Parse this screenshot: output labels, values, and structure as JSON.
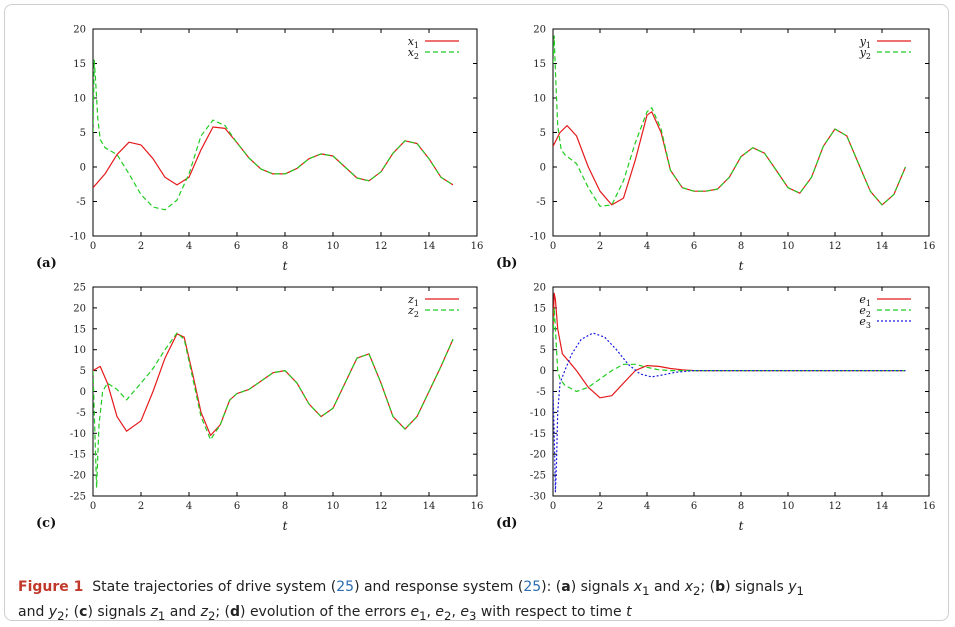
{
  "caption": {
    "label": "Figure 1",
    "p1": "State trajectories of drive system (",
    "ref1": "25",
    "p2": ") and response system (",
    "ref2": "25",
    "p3": "): (",
    "a": "a",
    "p4": ") signals ",
    "x1": "x",
    "x1s": "1",
    "and1": " and ",
    "x2": "x",
    "x2s": "2",
    "p5": "; (",
    "b": "b",
    "p6": ") signals ",
    "y1": "y",
    "y1s": "1",
    "and2": " and ",
    "y2": "y",
    "y2s": "2",
    "p7": "; (",
    "c": "c",
    "p8": ") signals ",
    "z1": "z",
    "z1s": "1",
    "and3": " and ",
    "z2": "z",
    "z2s": "2",
    "p9": "; (",
    "d": "d",
    "p10": ") evolution of the errors ",
    "e1": "e",
    "e1s": "1",
    "c1": ", ",
    "e2": "e",
    "e2s": "2",
    "c2": ", ",
    "e3": "e",
    "e3s": "3",
    "p11": " with respect to time ",
    "t": "t"
  },
  "chart_data": [
    {
      "type": "line",
      "panel_label": "(a)",
      "xlabel": "t",
      "xlim": [
        0,
        16
      ],
      "ylim": [
        -10,
        20
      ],
      "xticks": [
        0,
        2,
        4,
        6,
        8,
        10,
        12,
        14,
        16
      ],
      "yticks": [
        -10,
        -5,
        0,
        5,
        10,
        15,
        20
      ],
      "legend_position": "top-right",
      "series": [
        {
          "name": "x",
          "sub": "1",
          "color": "#e41a1c",
          "dash": "solid",
          "x": [
            0,
            0.5,
            1,
            1.5,
            2,
            2.5,
            3,
            3.5,
            4,
            4.5,
            5,
            5.5,
            6,
            6.5,
            7,
            7.5,
            8,
            8.5,
            9,
            9.5,
            10,
            10.5,
            11,
            11.5,
            12,
            12.5,
            13,
            13.5,
            14,
            14.5,
            15
          ],
          "y": [
            -3.0,
            -1.0,
            1.8,
            3.6,
            3.2,
            1.2,
            -1.5,
            -2.6,
            -1.5,
            2.5,
            5.8,
            5.6,
            3.5,
            1.3,
            -0.3,
            -1.0,
            -1.0,
            -0.2,
            1.2,
            1.9,
            1.6,
            0.0,
            -1.6,
            -2.0,
            -0.7,
            2.0,
            3.8,
            3.4,
            1.2,
            -1.5,
            -2.6
          ]
        },
        {
          "name": "x",
          "sub": "2",
          "color": "#22cc22",
          "dash": "dashed",
          "x": [
            0,
            0.05,
            0.1,
            0.2,
            0.3,
            0.5,
            1,
            1.5,
            2,
            2.5,
            3,
            3.5,
            4,
            4.5,
            5,
            5.5,
            6,
            6.5,
            7,
            7.5,
            8,
            8.5,
            9,
            9.5,
            10,
            10.5,
            11,
            11.5,
            12,
            12.5,
            13,
            13.5,
            14,
            14.5,
            15
          ],
          "y": [
            5.0,
            15.5,
            13.0,
            7.0,
            4.0,
            2.8,
            1.8,
            -1.0,
            -4.0,
            -5.8,
            -6.2,
            -4.8,
            -1.0,
            4.5,
            6.8,
            6.0,
            3.5,
            1.3,
            -0.3,
            -1.0,
            -1.0,
            -0.2,
            1.2,
            1.9,
            1.6,
            0.0,
            -1.6,
            -2.0,
            -0.7,
            2.0,
            3.8,
            3.4,
            1.2,
            -1.5,
            -2.6
          ]
        }
      ]
    },
    {
      "type": "line",
      "panel_label": "(b)",
      "xlabel": "t",
      "xlim": [
        0,
        16
      ],
      "ylim": [
        -10,
        20
      ],
      "xticks": [
        0,
        2,
        4,
        6,
        8,
        10,
        12,
        14,
        16
      ],
      "yticks": [
        -10,
        -5,
        0,
        5,
        10,
        15,
        20
      ],
      "legend_position": "top-right",
      "series": [
        {
          "name": "y",
          "sub": "1",
          "color": "#e41a1c",
          "dash": "solid",
          "x": [
            0,
            0.3,
            0.6,
            1,
            1.5,
            2,
            2.5,
            3,
            3.5,
            4,
            4.2,
            4.6,
            5,
            5.5,
            6,
            6.5,
            7,
            7.5,
            8,
            8.5,
            9,
            9.5,
            10,
            10.5,
            11,
            11.5,
            12,
            12.5,
            13,
            13.5,
            14,
            14.5,
            15
          ],
          "y": [
            3.0,
            5.0,
            6.0,
            4.5,
            0.0,
            -3.5,
            -5.5,
            -4.5,
            1.0,
            7.5,
            8.0,
            5.0,
            -0.5,
            -3.0,
            -3.5,
            -3.5,
            -3.2,
            -1.5,
            1.5,
            2.8,
            2.0,
            -0.5,
            -3.0,
            -3.8,
            -1.5,
            3.0,
            5.5,
            4.5,
            0.5,
            -3.5,
            -5.5,
            -4.0,
            0.0
          ]
        },
        {
          "name": "y",
          "sub": "2",
          "color": "#22cc22",
          "dash": "dashed",
          "x": [
            0,
            0.05,
            0.1,
            0.2,
            0.35,
            0.5,
            1,
            1.5,
            2,
            2.5,
            3,
            3.5,
            4,
            4.2,
            4.6,
            5,
            5.5,
            6,
            6.5,
            7,
            7.5,
            8,
            8.5,
            9,
            9.5,
            10,
            10.5,
            11,
            11.5,
            12,
            12.5,
            13,
            13.5,
            14,
            14.5,
            15
          ],
          "y": [
            15.0,
            19.0,
            14.0,
            6.0,
            2.5,
            1.8,
            0.5,
            -3.0,
            -5.7,
            -5.5,
            -2.0,
            3.5,
            8.0,
            8.6,
            5.5,
            -0.5,
            -3.0,
            -3.5,
            -3.5,
            -3.2,
            -1.5,
            1.5,
            2.8,
            2.0,
            -0.5,
            -3.0,
            -3.8,
            -1.5,
            3.0,
            5.5,
            4.5,
            0.5,
            -3.5,
            -5.5,
            -4.0,
            0.0
          ]
        }
      ]
    },
    {
      "type": "line",
      "panel_label": "(c)",
      "xlabel": "t",
      "xlim": [
        0,
        16
      ],
      "ylim": [
        -25,
        25
      ],
      "xticks": [
        0,
        2,
        4,
        6,
        8,
        10,
        12,
        14,
        16
      ],
      "yticks": [
        -25,
        -20,
        -15,
        -10,
        -5,
        0,
        5,
        10,
        15,
        20,
        25
      ],
      "legend_position": "top-right",
      "series": [
        {
          "name": "z",
          "sub": "1",
          "color": "#e41a1c",
          "dash": "solid",
          "x": [
            0,
            0.3,
            0.6,
            1,
            1.4,
            2,
            2.5,
            3,
            3.5,
            3.8,
            4.2,
            4.5,
            4.9,
            5.3,
            5.7,
            6,
            6.5,
            7,
            7.5,
            8,
            8.5,
            9,
            9.5,
            10,
            10.5,
            11,
            11.5,
            12,
            12.5,
            13,
            13.5,
            14,
            14.5,
            15
          ],
          "y": [
            5.0,
            6.0,
            2.0,
            -6.0,
            -9.5,
            -7.0,
            0.0,
            8.0,
            13.8,
            13.0,
            3.0,
            -5.0,
            -10.5,
            -8.0,
            -2.0,
            -0.5,
            0.5,
            2.5,
            4.5,
            5.0,
            2.0,
            -3.0,
            -6.0,
            -4.0,
            2.0,
            8.0,
            9.0,
            2.0,
            -6.0,
            -9.0,
            -6.0,
            0.0,
            6.0,
            12.5
          ]
        },
        {
          "name": "z",
          "sub": "2",
          "color": "#22cc22",
          "dash": "dashed",
          "x": [
            0,
            0.08,
            0.15,
            0.25,
            0.4,
            0.6,
            1,
            1.4,
            2,
            2.5,
            3,
            3.5,
            3.8,
            4.2,
            4.5,
            4.9,
            5.3,
            5.7,
            6,
            6.5,
            7,
            7.5,
            8,
            8.5,
            9,
            9.5,
            10,
            10.5,
            11,
            11.5,
            12,
            12.5,
            13,
            13.5,
            14,
            14.5,
            15
          ],
          "y": [
            5.0,
            -10.0,
            -23.0,
            -8.0,
            0.0,
            2.0,
            0.5,
            -2.0,
            2.0,
            5.5,
            10.0,
            14.0,
            12.5,
            2.0,
            -6.0,
            -11.5,
            -8.0,
            -2.0,
            -0.5,
            0.5,
            2.5,
            4.5,
            5.0,
            2.0,
            -3.0,
            -6.0,
            -4.0,
            2.0,
            8.0,
            9.0,
            2.0,
            -6.0,
            -9.0,
            -6.0,
            0.0,
            6.0,
            12.5
          ]
        }
      ]
    },
    {
      "type": "line",
      "panel_label": "(d)",
      "xlabel": "t",
      "xlim": [
        0,
        16
      ],
      "ylim": [
        -30,
        20
      ],
      "xticks": [
        0,
        2,
        4,
        6,
        8,
        10,
        12,
        14,
        16
      ],
      "yticks": [
        -30,
        -25,
        -20,
        -15,
        -10,
        -5,
        0,
        5,
        10,
        15,
        20
      ],
      "legend_position": "top-right",
      "series": [
        {
          "name": "e",
          "sub": "1",
          "color": "#e41a1c",
          "dash": "solid",
          "x": [
            0,
            0.05,
            0.1,
            0.2,
            0.4,
            0.7,
            1,
            1.5,
            2,
            2.5,
            3,
            3.5,
            4,
            4.5,
            5,
            5.5,
            6,
            7,
            8,
            10,
            12,
            14,
            15
          ],
          "y": [
            10.0,
            18.5,
            17.0,
            10.0,
            4.0,
            2.0,
            0.0,
            -4.0,
            -6.5,
            -6.0,
            -3.0,
            0.0,
            1.2,
            1.0,
            0.5,
            0.2,
            0.0,
            0.0,
            0.0,
            0.0,
            0.0,
            0.0,
            0.0
          ]
        },
        {
          "name": "e",
          "sub": "2",
          "color": "#22cc22",
          "dash": "dashed",
          "x": [
            0,
            0.05,
            0.1,
            0.2,
            0.3,
            0.5,
            1,
            1.5,
            2,
            2.5,
            3,
            3.5,
            4,
            4.5,
            5,
            6,
            7,
            8,
            10,
            12,
            14,
            15
          ],
          "y": [
            8.0,
            15.0,
            10.0,
            0.0,
            -2.0,
            -3.5,
            -5.0,
            -4.0,
            -2.0,
            0.0,
            1.5,
            1.5,
            0.8,
            0.2,
            0.0,
            0.0,
            0.0,
            0.0,
            0.0,
            0.0,
            0.0,
            0.0
          ]
        },
        {
          "name": "e",
          "sub": "3",
          "color": "#1a1adf",
          "dash": "dotted",
          "x": [
            0,
            0.05,
            0.1,
            0.15,
            0.2,
            0.3,
            0.5,
            0.8,
            1.2,
            1.7,
            2.2,
            2.7,
            3.2,
            3.7,
            4.2,
            4.7,
            5.2,
            6,
            7,
            8,
            10,
            12,
            14,
            15
          ],
          "y": [
            -5.0,
            -15.0,
            -29.0,
            -22.0,
            -10.0,
            -3.0,
            0.0,
            4.0,
            7.5,
            9.0,
            8.0,
            5.0,
            1.5,
            -0.8,
            -1.5,
            -1.0,
            -0.4,
            0.0,
            0.0,
            0.0,
            0.0,
            0.0,
            0.0,
            0.0
          ]
        }
      ]
    }
  ]
}
